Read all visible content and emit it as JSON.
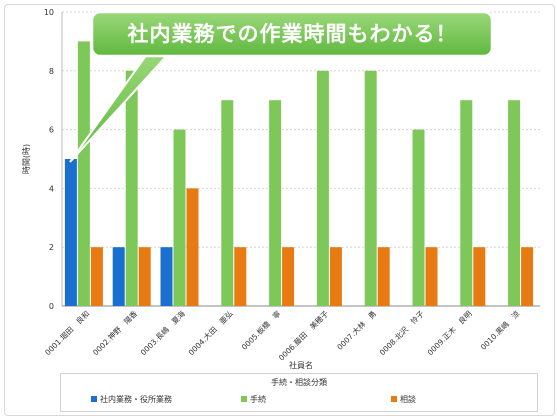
{
  "callout": {
    "text": "社内業務での作業時間もわかる！"
  },
  "chart_data": {
    "type": "bar",
    "title": "",
    "xlabel": "社員名",
    "ylabel": "時間(時)",
    "ylim": [
      0,
      10
    ],
    "yticks": [
      0,
      2,
      4,
      6,
      8,
      10
    ],
    "grid": true,
    "categories": [
      "0001.堀田　良和",
      "0002.神野　陽香",
      "0003.長嶋　夏海",
      "0004.大田　亜弘",
      "0005.板橋　寧",
      "0006.藤田　美穂子",
      "0007.大林　勇",
      "0008.北沢　怜子",
      "0009.正木　良明",
      "0010.黒嶋　涼"
    ],
    "series": [
      {
        "name": "社内業務・役所業務",
        "color": "#1a6fd1",
        "values": [
          5,
          2,
          2,
          0,
          0,
          0,
          0,
          0,
          0,
          0
        ]
      },
      {
        "name": "手続",
        "color": "#7ec85a",
        "values": [
          9,
          8,
          6,
          7,
          7,
          8,
          8,
          6,
          7,
          7
        ]
      },
      {
        "name": "相談",
        "color": "#e87a12",
        "values": [
          2,
          2,
          4,
          2,
          2,
          2,
          2,
          2,
          2,
          2
        ]
      }
    ],
    "legend": {
      "title": "手続・相談分類",
      "position": "bottom"
    }
  }
}
